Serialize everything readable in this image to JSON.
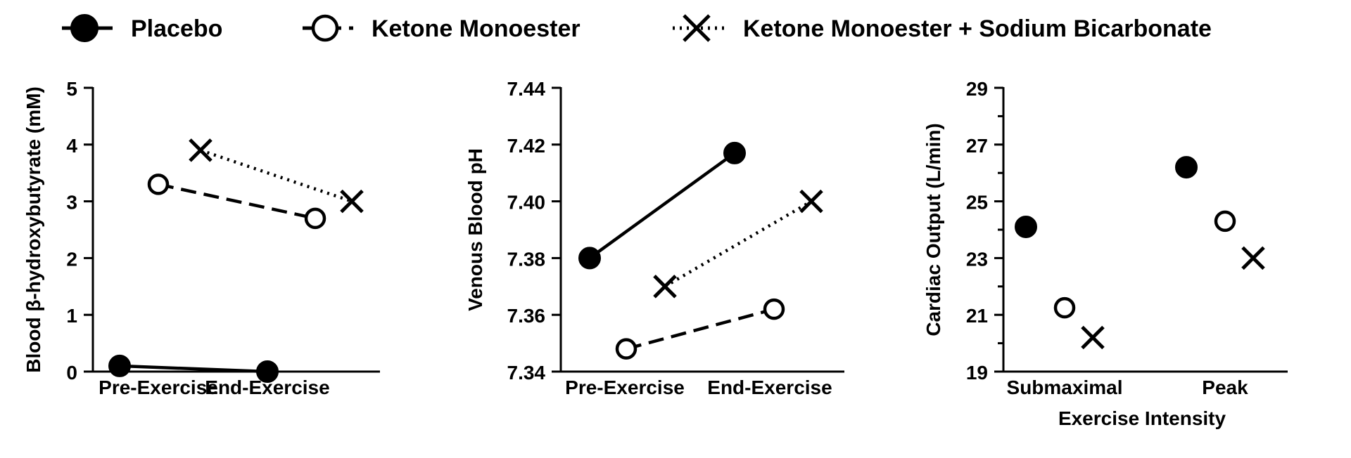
{
  "legend": {
    "items": [
      {
        "name": "Placebo",
        "marker": "filled-circle",
        "line": "solid"
      },
      {
        "name": "Ketone Monoester",
        "marker": "open-circle",
        "line": "dashed"
      },
      {
        "name": "Ketone Monoester + Sodium Bicarbonate",
        "marker": "cross",
        "line": "dotted"
      }
    ]
  },
  "chart_data": [
    {
      "type": "line",
      "ylabel": "Blood β-hydroxybutyrate (mM)",
      "xlabel": "",
      "categories": [
        "Pre-Exercise",
        "End-Exercise"
      ],
      "ylim": [
        0,
        5
      ],
      "yticks": [
        0,
        1,
        2,
        3,
        4,
        5
      ],
      "ytick_labels": [
        "0",
        "1",
        "2",
        "3",
        "4",
        "5"
      ],
      "series": [
        {
          "name": "Placebo",
          "values": [
            0.1,
            0.0
          ]
        },
        {
          "name": "Ketone Monoester",
          "values": [
            3.3,
            2.7
          ]
        },
        {
          "name": "Ketone Monoester + Sodium Bicarbonate",
          "values": [
            3.9,
            3.0
          ]
        }
      ]
    },
    {
      "type": "line",
      "ylabel": "Venous Blood pH",
      "xlabel": "",
      "categories": [
        "Pre-Exercise",
        "End-Exercise"
      ],
      "ylim": [
        7.34,
        7.44
      ],
      "yticks": [
        7.34,
        7.36,
        7.38,
        7.4,
        7.42,
        7.44
      ],
      "ytick_labels": [
        "7.34",
        "7.36",
        "7.38",
        "7.40",
        "7.42",
        "7.44"
      ],
      "series": [
        {
          "name": "Placebo",
          "values": [
            7.38,
            7.417
          ]
        },
        {
          "name": "Ketone Monoester",
          "values": [
            7.348,
            7.362
          ]
        },
        {
          "name": "Ketone Monoester + Sodium Bicarbonate",
          "values": [
            7.37,
            7.4
          ]
        }
      ]
    },
    {
      "type": "scatter",
      "ylabel": "Cardiac Output (L/min)",
      "xlabel": "Exercise Intensity",
      "categories": [
        "Submaximal",
        "Peak"
      ],
      "ylim": [
        19,
        29
      ],
      "yticks": [
        19,
        21,
        23,
        25,
        27,
        29
      ],
      "ytick_labels": [
        "19",
        "21",
        "23",
        "25",
        "27",
        "29"
      ],
      "series": [
        {
          "name": "Placebo",
          "values": [
            24.1,
            26.2
          ]
        },
        {
          "name": "Ketone Monoester",
          "values": [
            21.25,
            24.3
          ]
        },
        {
          "name": "Ketone Monoester + Sodium Bicarbonate",
          "values": [
            20.2,
            23.0
          ]
        }
      ]
    }
  ]
}
